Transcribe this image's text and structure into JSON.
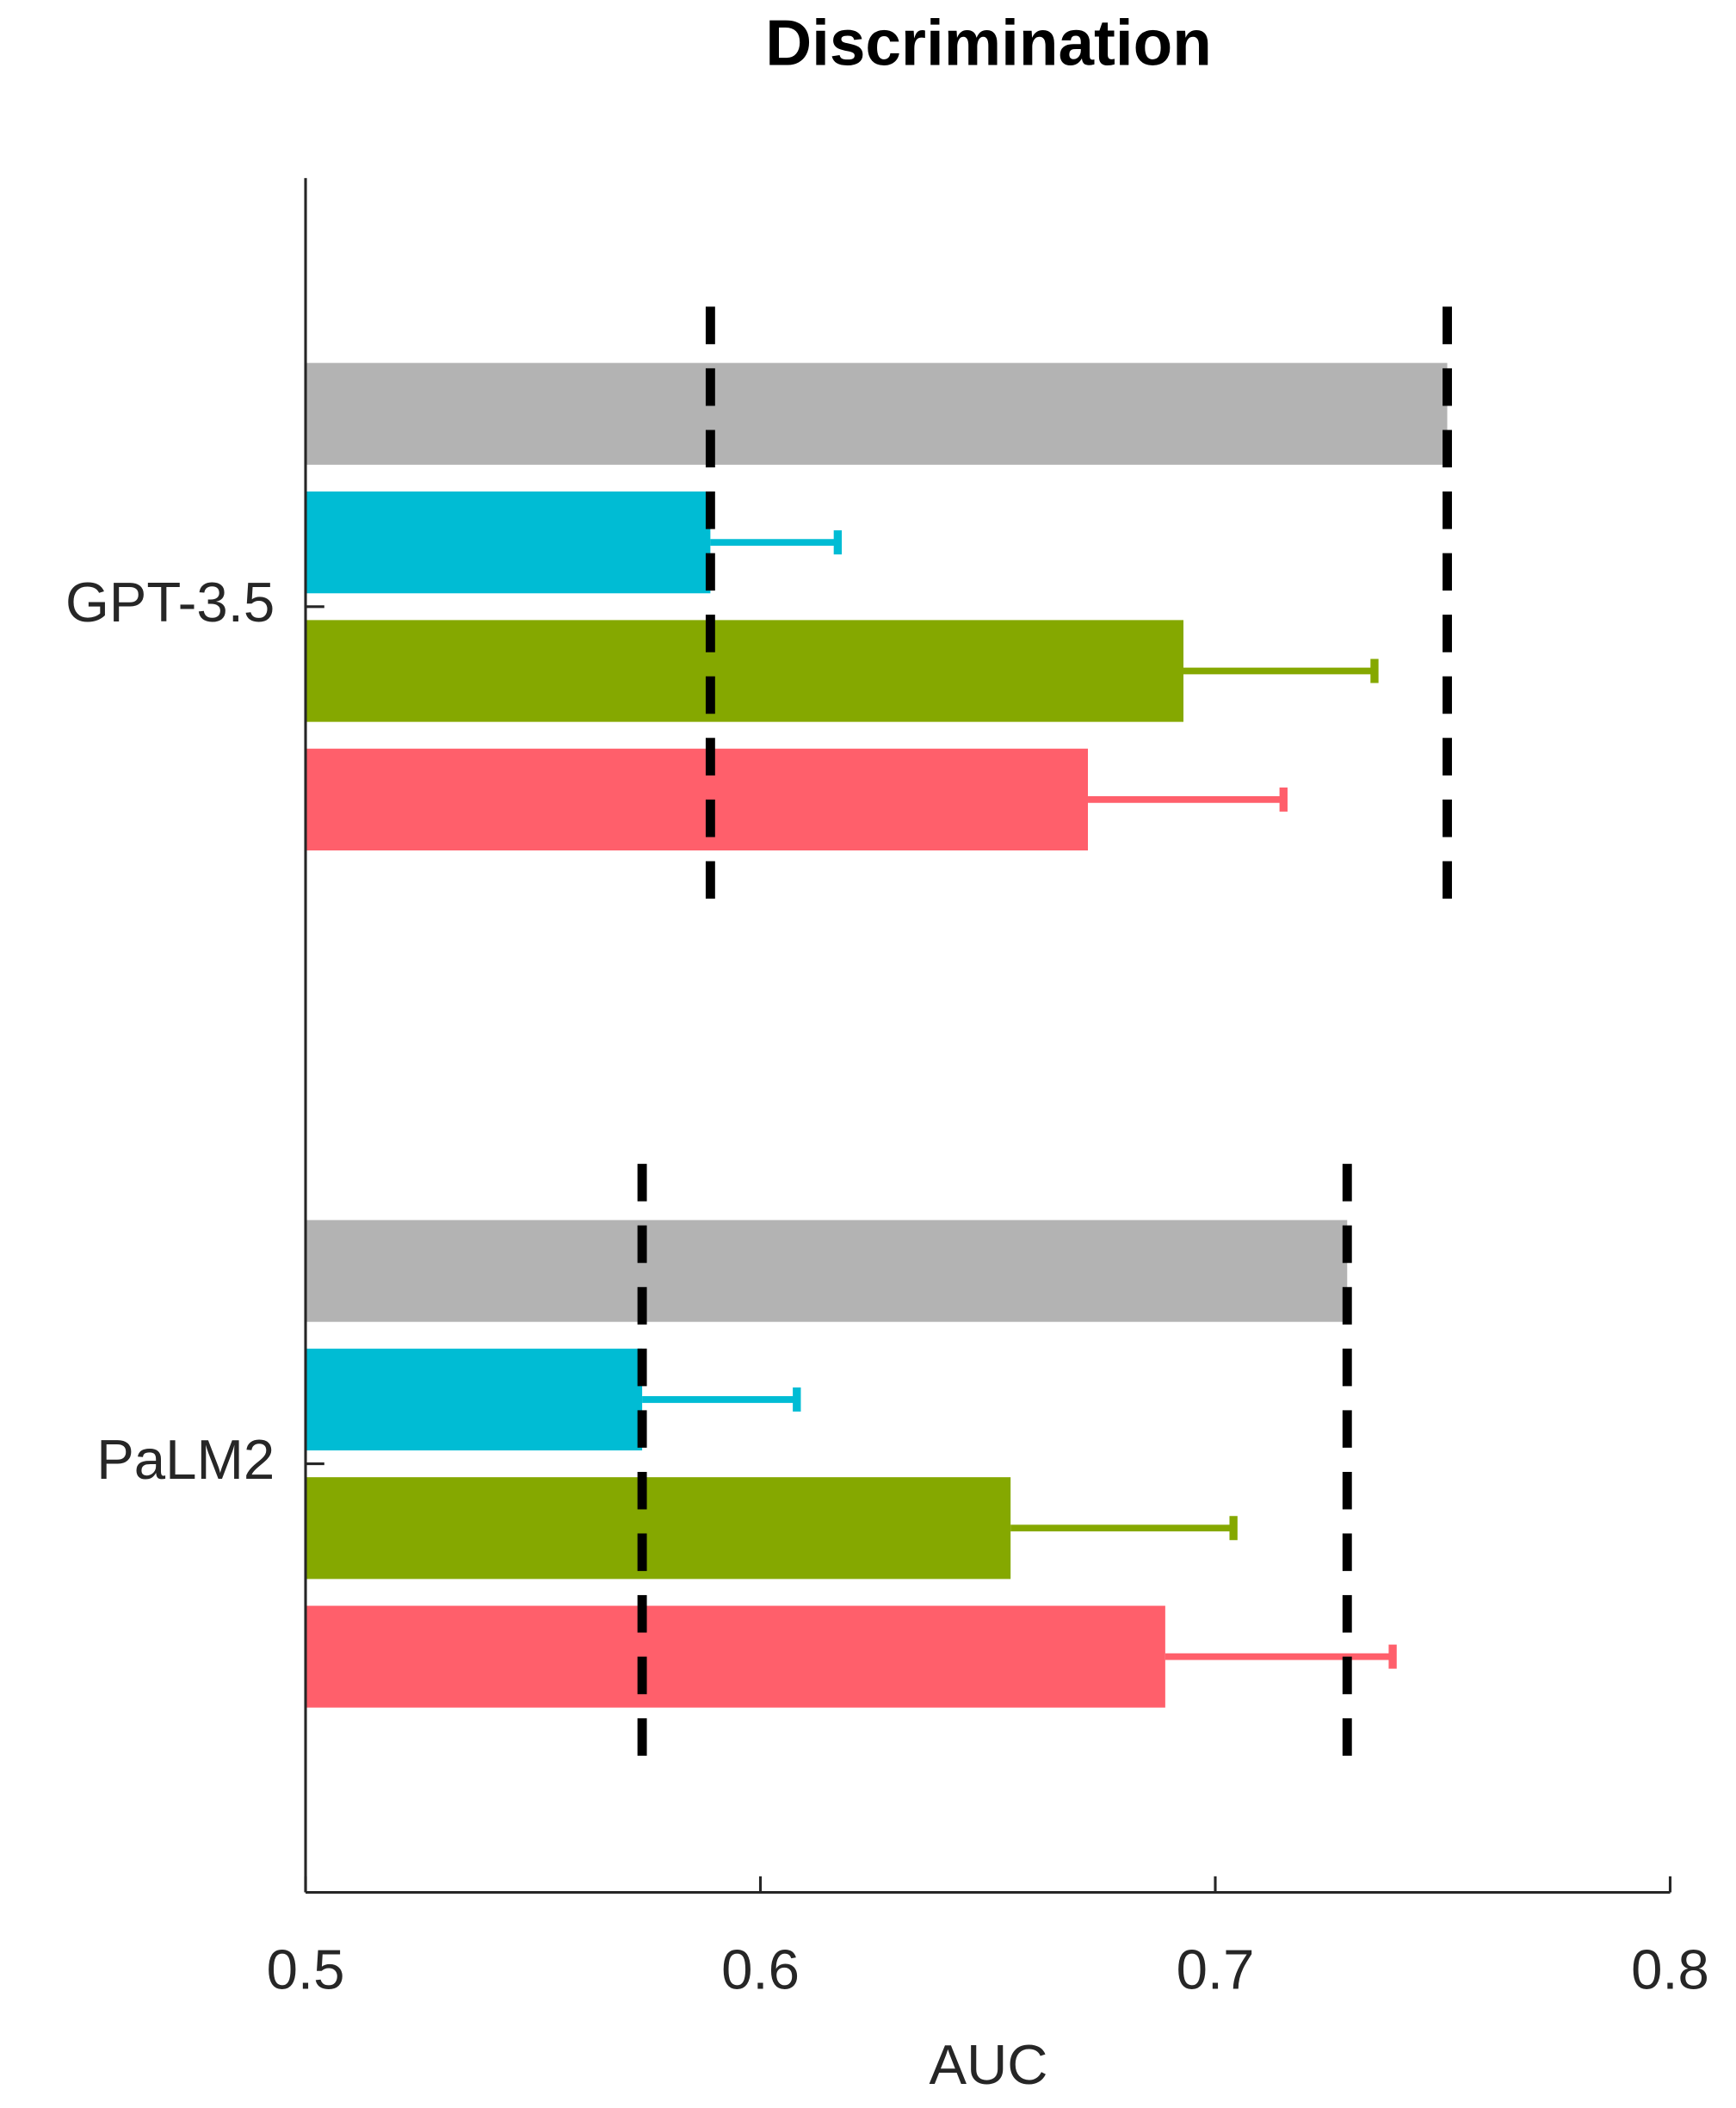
{
  "chart_data": {
    "type": "bar",
    "orientation": "horizontal",
    "title": "Discrimination",
    "x_label": "AUC",
    "categories": [
      "GPT-3.5",
      "PaLM2"
    ],
    "series": [
      {
        "color": "#b3b3b3",
        "values": [
          0.751,
          0.729
        ],
        "errors": [
          null,
          null
        ]
      },
      {
        "color": "#00bcd4",
        "values": [
          0.589,
          0.574
        ],
        "errors": [
          0.028,
          0.034
        ]
      },
      {
        "color": "#85a800",
        "values": [
          0.693,
          0.655
        ],
        "errors": [
          0.042,
          0.049
        ]
      },
      {
        "color": "#ff5f6b",
        "values": [
          0.672,
          0.689
        ],
        "errors": [
          0.043,
          0.05
        ]
      }
    ],
    "reference_lines": [
      [
        0.589,
        0.751
      ],
      [
        0.574,
        0.729
      ]
    ],
    "xlim": [
      0.5,
      0.8
    ],
    "xticks": [
      0.5,
      0.6,
      0.7,
      0.8
    ]
  }
}
